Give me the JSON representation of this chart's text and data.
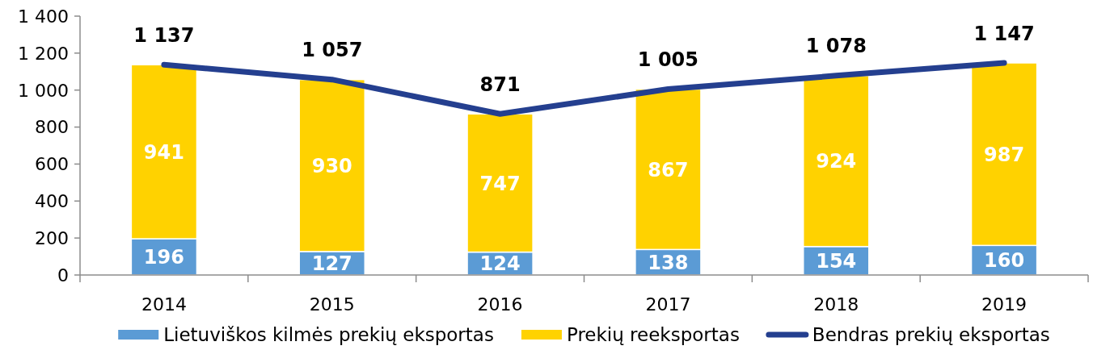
{
  "chart_data": {
    "type": "bar",
    "stacked": true,
    "categories": [
      "2014",
      "2015",
      "2016",
      "2017",
      "2018",
      "2019"
    ],
    "series": [
      {
        "name": "Lietuviškos kilmės prekių eksportas",
        "color": "#5b9bd5",
        "values": [
          196,
          127,
          124,
          138,
          154,
          160
        ],
        "value_labels": [
          "196",
          "127",
          "124",
          "138",
          "154",
          "160"
        ]
      },
      {
        "name": "Prekių reeksportas",
        "color": "#ffd200",
        "values": [
          941,
          930,
          747,
          867,
          924,
          987
        ],
        "value_labels": [
          "941",
          "930",
          "747",
          "867",
          "924",
          "987"
        ]
      },
      {
        "name": "Bendras prekių eksportas",
        "type": "line",
        "color": "#243f8f",
        "values": [
          1137,
          1057,
          871,
          1005,
          1078,
          1147
        ],
        "value_labels": [
          "1 137",
          "1 057",
          "871",
          "1 005",
          "1 078",
          "1 147"
        ]
      }
    ],
    "ylim": [
      0,
      1400
    ],
    "yticks": [
      0,
      200,
      400,
      600,
      800,
      {
        "value": 1000,
        "label": "1 000"
      },
      {
        "value": 1200,
        "label": "1 200"
      },
      {
        "value": 1400,
        "label": "1 400"
      }
    ],
    "legend": "bottom"
  }
}
